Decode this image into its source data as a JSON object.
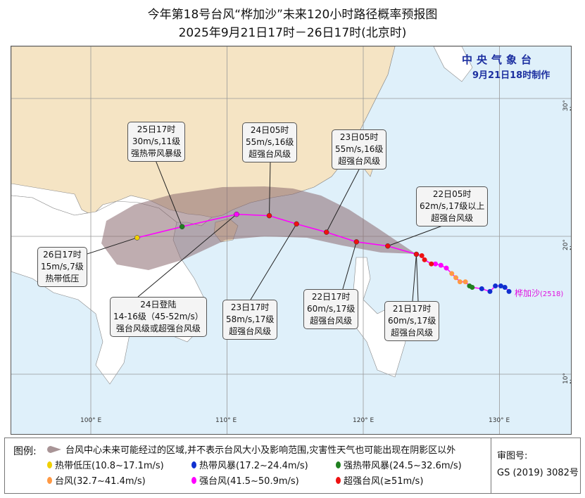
{
  "title": {
    "line1": "今年第18号台风“桦加沙”未来120小时路径概率预报图",
    "line2": "2025年9月21日17时－26日17时(北京时)"
  },
  "issuer": {
    "name": "中央气象台",
    "time": "9月21日18时制作"
  },
  "typhoon": {
    "name": "桦加沙",
    "number": "(2518)"
  },
  "axes": {
    "lon": [
      "100° E",
      "110° E",
      "120° E",
      "130° E"
    ],
    "lat": [
      "30° N",
      "20° N",
      "10° N"
    ]
  },
  "colors": {
    "sea": "#dff0fa",
    "china_land": "#f5e4c4",
    "other_land": "#ffffff",
    "cone": "#8a6a70",
    "track": "#ff00ff",
    "td": "#f0d000",
    "ts": "#1030d0",
    "sts": "#208020",
    "ty": "#ff9944",
    "sty": "#ff00ff",
    "superty": "#ee1111"
  },
  "past_track": [
    {
      "lon": 130.7,
      "lat": 16.0,
      "level": "ts"
    },
    {
      "lon": 130.4,
      "lat": 16.3,
      "level": "ts"
    },
    {
      "lon": 130.1,
      "lat": 16.4,
      "level": "ts"
    },
    {
      "lon": 129.7,
      "lat": 16.4,
      "level": "ts"
    },
    {
      "lon": 129.3,
      "lat": 16.0,
      "level": "ts"
    },
    {
      "lon": 128.7,
      "lat": 16.2,
      "level": "ts"
    },
    {
      "lon": 128.0,
      "lat": 16.3,
      "level": "sts"
    },
    {
      "lon": 127.8,
      "lat": 16.4,
      "level": "sts"
    },
    {
      "lon": 127.5,
      "lat": 16.7,
      "level": "ty"
    },
    {
      "lon": 127.1,
      "lat": 16.7,
      "level": "ty"
    },
    {
      "lon": 126.8,
      "lat": 17.0,
      "level": "ty"
    },
    {
      "lon": 126.5,
      "lat": 17.3,
      "level": "ty"
    },
    {
      "lon": 126.1,
      "lat": 17.7,
      "level": "sty"
    },
    {
      "lon": 125.7,
      "lat": 17.9,
      "level": "sty"
    },
    {
      "lon": 125.3,
      "lat": 18.0,
      "level": "sty"
    },
    {
      "lon": 125.0,
      "lat": 18.0,
      "level": "superty"
    },
    {
      "lon": 124.5,
      "lat": 18.3,
      "level": "superty"
    },
    {
      "lon": 124.3,
      "lat": 18.6,
      "level": "superty"
    }
  ],
  "forecast": [
    {
      "lon": 123.9,
      "lat": 18.7,
      "level": "superty",
      "time": "21日17时",
      "wind": "60m/s,17级",
      "class": "超强台风级"
    },
    {
      "lon": 121.8,
      "lat": 19.3,
      "level": "superty",
      "time": "22日05时",
      "wind": "62m/s,17级以上",
      "class": "超强台风级"
    },
    {
      "lon": 119.5,
      "lat": 19.6,
      "level": "superty",
      "time": "22日17时",
      "wind": "60m/s,17级",
      "class": "超强台风级"
    },
    {
      "lon": 117.3,
      "lat": 20.3,
      "level": "superty",
      "time": "23日05时",
      "wind": "55m/s,16级",
      "class": "超强台风级"
    },
    {
      "lon": 115.1,
      "lat": 20.9,
      "level": "superty",
      "time": "23日17时",
      "wind": "58m/s,17级",
      "class": "超强台风级"
    },
    {
      "lon": 113.1,
      "lat": 21.5,
      "level": "superty",
      "time": "24日05时",
      "wind": "55m/s,16级",
      "class": "超强台风级"
    },
    {
      "lon": 110.7,
      "lat": 21.6,
      "level": "sty",
      "time": "24日登陆",
      "wind": "14-16级（45-52m/s）",
      "class": "强台风级或超强台风级"
    },
    {
      "lon": 106.7,
      "lat": 20.7,
      "level": "sts",
      "time": "25日17时",
      "wind": "30m/s,11级",
      "class": "强热带风暴级"
    },
    {
      "lon": 103.4,
      "lat": 19.9,
      "level": "td",
      "time": "26日17时",
      "wind": "15m/s,7级",
      "class": "热带低压"
    }
  ],
  "legend": {
    "heading": "图例:",
    "cone": "台风中心未来可能经过的区域,并不表示台风大小及影响范围,灾害性天气也可能出现在阴影区以外",
    "items": [
      {
        "key": "td",
        "label": "热带低压(10.8~17.1m/s)"
      },
      {
        "key": "ts",
        "label": "热带风暴(17.2~24.4m/s)"
      },
      {
        "key": "sts",
        "label": "强热带风暴(24.5~32.6m/s)"
      },
      {
        "key": "ty",
        "label": "台风(32.7~41.4m/s)"
      },
      {
        "key": "sty",
        "label": "强台风(41.5~50.9m/s)"
      },
      {
        "key": "superty",
        "label": "超强台风(≥51m/s)"
      }
    ],
    "audit_label": "审图号:",
    "audit_number": "GS (2019) 3082号"
  }
}
